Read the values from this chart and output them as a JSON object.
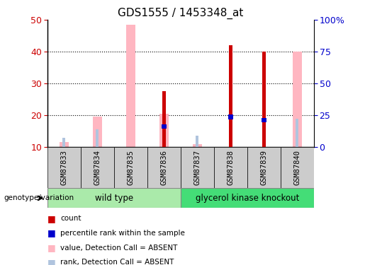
{
  "title": "GDS1555 / 1453348_at",
  "samples": [
    "GSM87833",
    "GSM87834",
    "GSM87835",
    "GSM87836",
    "GSM87837",
    "GSM87838",
    "GSM87839",
    "GSM87840"
  ],
  "count_bars": {
    "values": [
      null,
      null,
      null,
      27.5,
      null,
      42,
      40,
      null
    ],
    "color": "#CC0000"
  },
  "rank_bars": {
    "values": [
      null,
      null,
      null,
      16.5,
      null,
      19.5,
      18.5,
      null
    ],
    "color": "#0000CC"
  },
  "value_absent_bars": {
    "values": [
      11.5,
      19.5,
      48.5,
      20.5,
      11.0,
      null,
      null,
      40.0
    ],
    "color": "#FFB6C1"
  },
  "rank_absent_bars": {
    "values": [
      13.0,
      15.5,
      null,
      null,
      13.5,
      null,
      null,
      19.0
    ],
    "color": "#B0C4DE"
  },
  "ylim_left": [
    10,
    50
  ],
  "ylim_right": [
    0,
    100
  ],
  "right_yticks": [
    0,
    25,
    50,
    75,
    100
  ],
  "right_yticklabels": [
    "0",
    "25",
    "50",
    "75",
    "100%"
  ],
  "left_yticks": [
    10,
    20,
    30,
    40,
    50
  ],
  "dotted_lines": [
    20,
    30,
    40
  ],
  "axis_label_color_left": "#CC0000",
  "axis_label_color_right": "#0000CC",
  "legend_items": [
    {
      "color": "#CC0000",
      "label": "count"
    },
    {
      "color": "#0000CC",
      "label": "percentile rank within the sample"
    },
    {
      "color": "#FFB6C1",
      "label": "value, Detection Call = ABSENT"
    },
    {
      "color": "#B0C4DE",
      "label": "rank, Detection Call = ABSENT"
    }
  ],
  "genotype_label": "genotype/variation",
  "wt_color": "#AAEAAA",
  "gko_color": "#44DD77",
  "xticklabel_bg": "#CCCCCC",
  "wild_type_label": "wild type",
  "gko_label": "glycerol kinase knockout"
}
